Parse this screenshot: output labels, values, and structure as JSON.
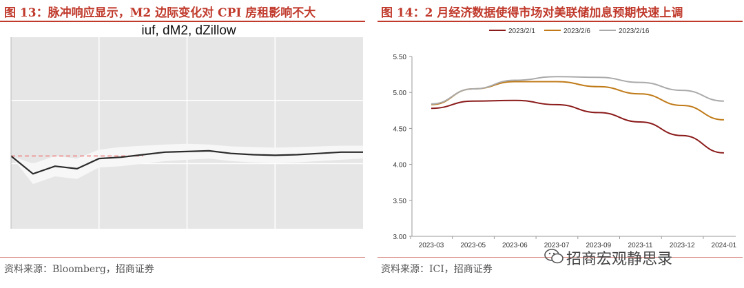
{
  "left": {
    "figure_title": "图 13：脉冲响应显示，M2 边际变化对 CPI 房租影响不大",
    "source": "资料来源：Bloomberg，招商证券",
    "chart_data": {
      "type": "line",
      "title": "iuf, dM2, dZillow",
      "xlabel": "",
      "ylabel": "",
      "grid": true,
      "x": [
        0,
        1,
        2,
        3,
        4,
        5,
        6,
        7,
        8,
        9,
        10,
        11,
        12,
        13,
        14,
        15,
        16
      ],
      "series": [
        {
          "values": [
            0.02,
            -0.12,
            -0.06,
            -0.08,
            0.0,
            0.01,
            0.03,
            0.05,
            0.055,
            0.06,
            0.04,
            0.03,
            0.025,
            0.03,
            0.04,
            0.05,
            0.05
          ]
        }
      ],
      "band": {
        "upper": [
          0.02,
          -0.04,
          0.02,
          0.0,
          0.07,
          0.09,
          0.1,
          0.11,
          0.115,
          0.11,
          0.095,
          0.09,
          0.085,
          0.09,
          0.095,
          0.1,
          0.1
        ],
        "lower": [
          0.02,
          -0.2,
          -0.14,
          -0.16,
          -0.07,
          -0.06,
          -0.04,
          -0.02,
          -0.01,
          0.0,
          -0.02,
          -0.03,
          -0.035,
          -0.03,
          -0.02,
          -0.01,
          0.0
        ]
      },
      "ylim": [
        -0.55,
        0.95
      ],
      "zero_line": 0.02,
      "colors": {
        "line": "#2b2b2b",
        "band": "#f7f7f7",
        "bg": "#e6e6e6",
        "grid": "#ffffff",
        "zero": "#f08080"
      }
    }
  },
  "right": {
    "figure_title": "图 14：2 月经济数据使得市场对美联储加息预期快速上调",
    "source": "资料来源：ICI，招商证券",
    "watermark": "招商宏观静思录",
    "chart_data": {
      "type": "line",
      "title": "",
      "xlabel": "",
      "ylabel": "",
      "categories": [
        "2023-03",
        "2023-05",
        "2023-06",
        "2023-07",
        "2023-09",
        "2023-11",
        "2023-12",
        "2024-01"
      ],
      "tick_labels": [
        "2023-03",
        "2023-05",
        "2023-06",
        "2023-07",
        "2023-09",
        "2023-11",
        "2023-12",
        "2024-01"
      ],
      "series": [
        {
          "name": "2023/2/1",
          "color": "#8b1a1a",
          "values": [
            4.78,
            4.88,
            4.89,
            4.83,
            4.72,
            4.59,
            4.4,
            4.16
          ]
        },
        {
          "name": "2023/2/6",
          "color": "#c07a17",
          "values": [
            4.83,
            5.05,
            5.15,
            5.15,
            5.08,
            4.98,
            4.82,
            4.62
          ]
        },
        {
          "name": "2023/2/16",
          "color": "#aaaaaa",
          "values": [
            4.84,
            5.05,
            5.17,
            5.22,
            5.21,
            5.14,
            5.03,
            4.88
          ]
        }
      ],
      "yticks": [
        "3.00",
        "3.50",
        "4.00",
        "4.50",
        "5.00",
        "5.50"
      ],
      "ylim": [
        3.0,
        5.5
      ],
      "legend_position": "top",
      "grid": false
    }
  }
}
